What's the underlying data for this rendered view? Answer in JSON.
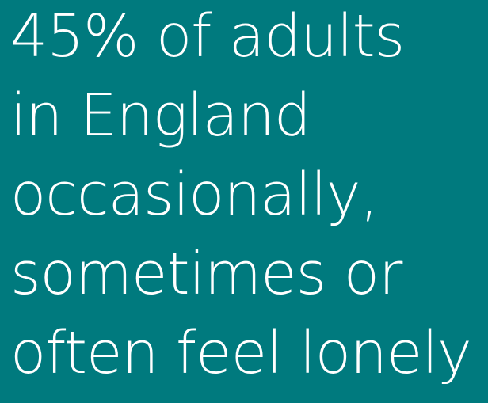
{
  "card": {
    "background_color": "#007a7e",
    "text_color": "#ffffff",
    "lines": [
      "45% of adults",
      "in England",
      "occasionally,",
      "sometimes or",
      "often feel lonely"
    ]
  }
}
